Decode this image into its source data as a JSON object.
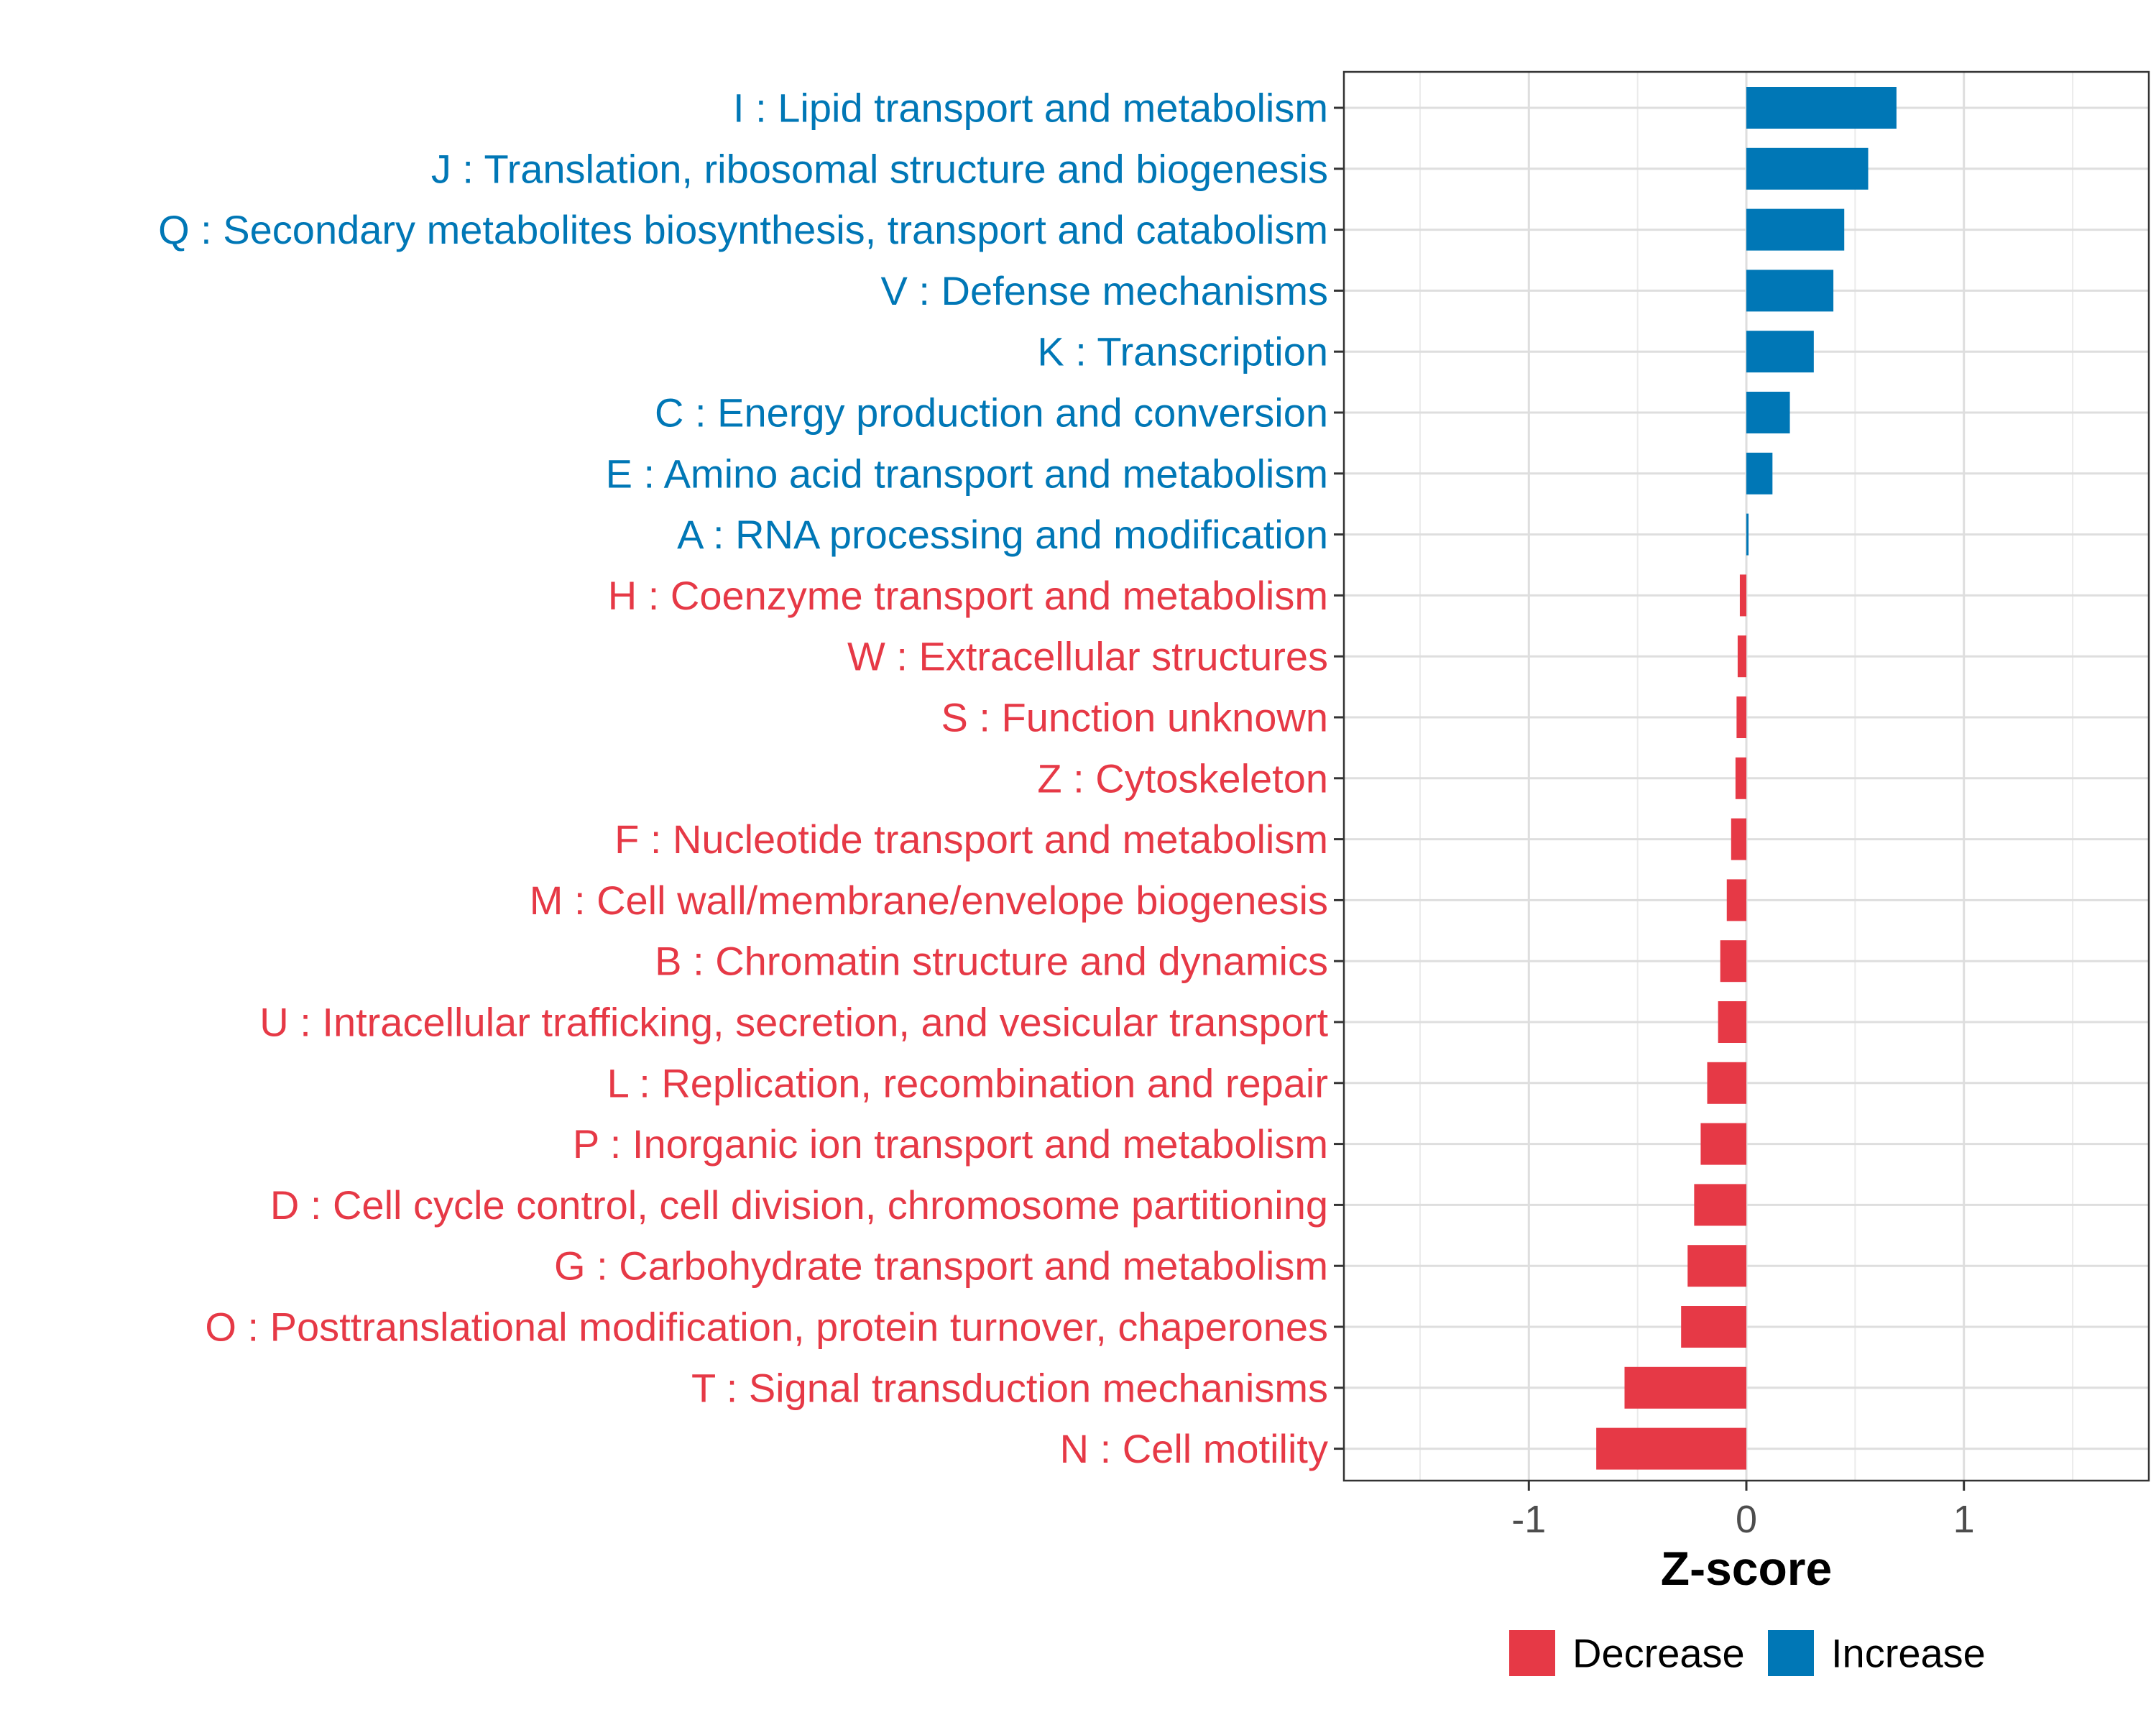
{
  "chart_data": {
    "type": "bar",
    "orientation": "horizontal",
    "title": "",
    "xlabel": "Z-score",
    "ylabel": "",
    "xlim": [
      -1.85,
      1.85
    ],
    "xticks": [
      -1,
      0,
      1
    ],
    "xtick_labels": [
      "-1",
      "0",
      "1"
    ],
    "grid": true,
    "legend_position": "bottom",
    "colors": {
      "Decrease": "#E63946",
      "Increase": "#0077B6"
    },
    "legend": [
      {
        "label": "Decrease",
        "color": "#E63946"
      },
      {
        "label": "Increase",
        "color": "#0077B6"
      }
    ],
    "categories": [
      {
        "label": "I : Lipid transport and metabolism",
        "value": 0.69,
        "direction": "Increase"
      },
      {
        "label": "J : Translation, ribosomal structure and biogenesis",
        "value": 0.56,
        "direction": "Increase"
      },
      {
        "label": "Q : Secondary metabolites biosynthesis, transport and catabolism",
        "value": 0.45,
        "direction": "Increase"
      },
      {
        "label": "V : Defense mechanisms",
        "value": 0.4,
        "direction": "Increase"
      },
      {
        "label": "K : Transcription",
        "value": 0.31,
        "direction": "Increase"
      },
      {
        "label": "C : Energy production and conversion",
        "value": 0.2,
        "direction": "Increase"
      },
      {
        "label": "E : Amino acid transport and metabolism",
        "value": 0.12,
        "direction": "Increase"
      },
      {
        "label": "A : RNA processing and modification",
        "value": 0.01,
        "direction": "Increase"
      },
      {
        "label": "H : Coenzyme transport and metabolism",
        "value": -0.03,
        "direction": "Decrease"
      },
      {
        "label": "W : Extracellular structures",
        "value": -0.04,
        "direction": "Decrease"
      },
      {
        "label": "S : Function unknown",
        "value": -0.045,
        "direction": "Decrease"
      },
      {
        "label": "Z : Cytoskeleton",
        "value": -0.05,
        "direction": "Decrease"
      },
      {
        "label": "F : Nucleotide transport and metabolism",
        "value": -0.07,
        "direction": "Decrease"
      },
      {
        "label": "M : Cell wall/membrane/envelope biogenesis",
        "value": -0.09,
        "direction": "Decrease"
      },
      {
        "label": "B : Chromatin structure and dynamics",
        "value": -0.12,
        "direction": "Decrease"
      },
      {
        "label": "U : Intracellular trafficking, secretion, and vesicular transport",
        "value": -0.13,
        "direction": "Decrease"
      },
      {
        "label": "L : Replication, recombination and repair",
        "value": -0.18,
        "direction": "Decrease"
      },
      {
        "label": "P : Inorganic ion transport and metabolism",
        "value": -0.21,
        "direction": "Decrease"
      },
      {
        "label": "D : Cell cycle control, cell division, chromosome partitioning",
        "value": -0.24,
        "direction": "Decrease"
      },
      {
        "label": "G : Carbohydrate transport and metabolism",
        "value": -0.27,
        "direction": "Decrease"
      },
      {
        "label": "O : Posttranslational modification, protein turnover, chaperones",
        "value": -0.3,
        "direction": "Decrease"
      },
      {
        "label": "T : Signal transduction mechanisms",
        "value": -0.56,
        "direction": "Decrease"
      },
      {
        "label": "N : Cell motility",
        "value": -0.69,
        "direction": "Decrease"
      }
    ]
  }
}
